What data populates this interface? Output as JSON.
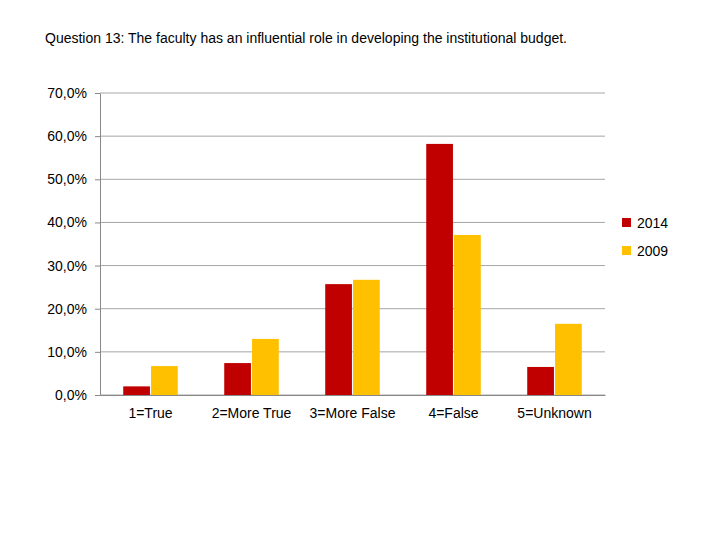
{
  "chart_data": {
    "type": "bar",
    "title": "Question 13: The faculty has an influential role in developing the institutional budget.",
    "categories": [
      "1=True",
      "2=More True",
      "3=More False",
      "4=False",
      "5=Unknown"
    ],
    "series": [
      {
        "name": "2014",
        "color": "#c00000",
        "values": [
          2.0,
          7.4,
          25.7,
          58.2,
          6.5
        ]
      },
      {
        "name": "2009",
        "color": "#ffc000",
        "values": [
          6.7,
          13.0,
          26.7,
          37.1,
          16.5
        ]
      }
    ],
    "ylim": [
      0,
      70
    ],
    "yticks": [
      {
        "value": 0,
        "label": "0,0%"
      },
      {
        "value": 10,
        "label": "10,0%"
      },
      {
        "value": 20,
        "label": "20,0%"
      },
      {
        "value": 30,
        "label": "30,0%"
      },
      {
        "value": 40,
        "label": "40,0%"
      },
      {
        "value": 50,
        "label": "50,0%"
      },
      {
        "value": 60,
        "label": "60,0%"
      },
      {
        "value": 70,
        "label": "70,0%"
      }
    ],
    "grid": true,
    "legend": "right"
  }
}
